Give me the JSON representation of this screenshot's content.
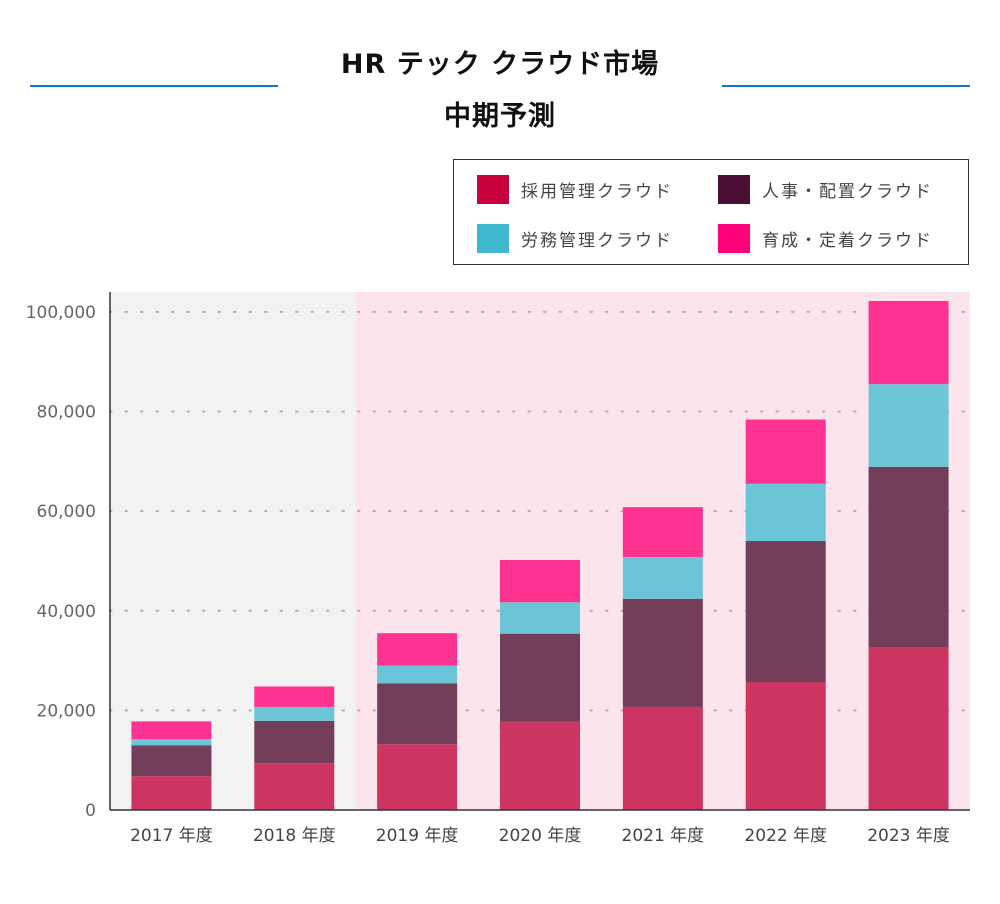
{
  "header": {
    "title_line1": "HR テック クラウド市場",
    "title_line2": "中期予測"
  },
  "colors": {
    "title_rule": "#1a73c8",
    "actual_region_bg": "#f2f2f2",
    "forecast_region_bg": "#fce4ec"
  },
  "chart_data": {
    "type": "bar",
    "stacked": true,
    "categories": [
      "2017 年度",
      "2018 年度",
      "2019 年度",
      "2020 年度",
      "2021 年度",
      "2022 年度",
      "2023 年度"
    ],
    "series": [
      {
        "name": "採用管理クラウド",
        "color": "#cc3462",
        "legend_color": "#c8003c",
        "values": [
          6800,
          9400,
          13200,
          17700,
          20700,
          25700,
          32600
        ]
      },
      {
        "name": "人事・配置クラウド",
        "color": "#723e5a",
        "legend_color": "#4a0f33",
        "values": [
          6200,
          8500,
          12200,
          17700,
          21700,
          28300,
          36300
        ]
      },
      {
        "name": "労務管理クラウド",
        "color": "#6bc5d7",
        "legend_color": "#40b8cf",
        "values": [
          1200,
          2800,
          3600,
          6300,
          8400,
          11500,
          16600
        ]
      },
      {
        "name": "育成・定着クラウド",
        "color": "#fe3391",
        "legend_color": "#ff007a",
        "values": [
          3600,
          4100,
          6500,
          8500,
          10000,
          12900,
          16700
        ]
      }
    ],
    "legend_order": [
      0,
      1,
      2,
      3
    ],
    "yticks": [
      "0",
      "20,000",
      "40,000",
      "60,000",
      "80,000",
      "100,000"
    ],
    "ylim": [
      0,
      104000
    ],
    "grid": "dotted horizontal",
    "legend_position": "top-right",
    "shaded_actual_categories": 2
  }
}
